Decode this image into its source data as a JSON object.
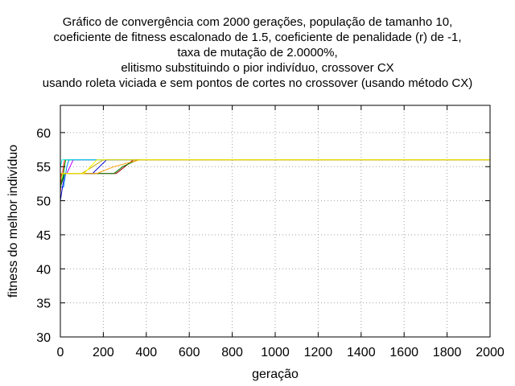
{
  "chart_data": {
    "type": "line",
    "title_lines": [
      "Gráfico de convergência com 2000 gerações, população de tamanho 10,",
      "coeficiente de fitness escalonado de 1.5, coeficiente de penalidade (r) de -1,",
      "taxa de mutação de 2.0000%,",
      "elitismo substituindo o pior indivíduo, crossover CX",
      "usando roleta viciada e sem pontos de cortes no crossover (usando método CX)"
    ],
    "xlabel": "geração",
    "ylabel": "fitness do melhor indivíduo",
    "xlim": [
      0,
      2000
    ],
    "ylim": [
      30,
      64
    ],
    "x_ticks": [
      "0",
      "200",
      "400",
      "600",
      "800",
      "1000",
      "1200",
      "1400",
      "1600",
      "1800",
      "2000"
    ],
    "y_ticks": [
      "30",
      "35",
      "40",
      "45",
      "50",
      "55",
      "60"
    ],
    "grid": true,
    "legend": "none",
    "series": [
      {
        "color": "#ff0000",
        "x": [
          0,
          10,
          20,
          2000
        ],
        "y": [
          54,
          54,
          56,
          56
        ]
      },
      {
        "color": "#00c000",
        "x": [
          0,
          15,
          25,
          2000
        ],
        "y": [
          52,
          54,
          56,
          56
        ]
      },
      {
        "color": "#0080ff",
        "x": [
          0,
          15,
          30,
          40,
          2000
        ],
        "y": [
          52,
          52,
          55,
          56,
          56
        ]
      },
      {
        "color": "#c000ff",
        "x": [
          0,
          30,
          60,
          2000
        ],
        "y": [
          54,
          54,
          56,
          56
        ]
      },
      {
        "color": "#00eeee",
        "x": [
          0,
          8,
          40,
          2000
        ],
        "y": [
          55,
          56,
          56,
          56
        ]
      },
      {
        "color": "#c0a000",
        "x": [
          0,
          100,
          200,
          2000
        ],
        "y": [
          54,
          54,
          56,
          56
        ]
      },
      {
        "color": "#0000cc",
        "x": [
          0,
          20,
          150,
          215,
          2000
        ],
        "y": [
          50,
          54,
          54,
          56,
          56
        ]
      },
      {
        "color": "#a00000",
        "x": [
          0,
          5,
          260,
          300,
          340,
          2000
        ],
        "y": [
          51,
          54,
          54,
          55,
          56,
          56
        ]
      },
      {
        "color": "#008000",
        "x": [
          0,
          20,
          250,
          290,
          360,
          2000
        ],
        "y": [
          52,
          54,
          54,
          55,
          56,
          56
        ]
      },
      {
        "color": "#ffa000",
        "x": [
          0,
          10,
          170,
          250,
          370,
          2000
        ],
        "y": [
          53,
          54,
          54,
          55,
          56,
          56
        ]
      },
      {
        "color": "#ffff00",
        "x": [
          0,
          15,
          110,
          170,
          2000
        ],
        "y": [
          54,
          54,
          54,
          56,
          56
        ]
      }
    ]
  }
}
